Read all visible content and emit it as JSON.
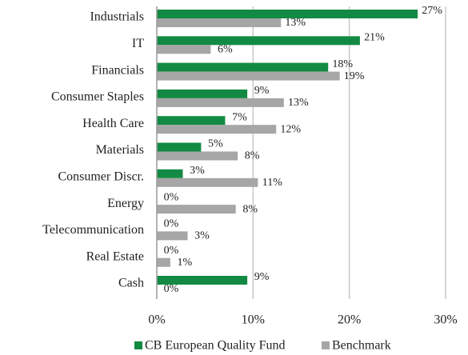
{
  "chart_data": {
    "type": "hbar",
    "categories": [
      "Industrials",
      "IT",
      "Financials",
      "Consumer Staples",
      "Health Care",
      "Materials",
      "Consumer Discr.",
      "Energy",
      "Telecommunication",
      "Real Estate",
      "Cash"
    ],
    "series": [
      {
        "name": "CB European Quality Fund",
        "color": "#138a43",
        "values": [
          27.1,
          21.1,
          17.8,
          9.4,
          7.1,
          4.6,
          2.7,
          0,
          0,
          0,
          9.4
        ],
        "value_labels": [
          "27%",
          "21%",
          "18%",
          "9%",
          "7%",
          "5%",
          "3%",
          "0%",
          "0%",
          "0%",
          "9%"
        ]
      },
      {
        "name": "Benchmark",
        "color": "#a6a6a6",
        "values": [
          12.9,
          5.6,
          19.0,
          13.2,
          12.4,
          8.4,
          10.5,
          8.2,
          3.2,
          1.4,
          0
        ],
        "value_labels": [
          "13%",
          "6%",
          "19%",
          "13%",
          "12%",
          "8%",
          "11%",
          "8%",
          "3%",
          "1%",
          "0%"
        ]
      }
    ],
    "xlim": [
      0,
      30
    ],
    "xticks": [
      {
        "value": 0,
        "label": "0%"
      },
      {
        "value": 10,
        "label": "10%"
      },
      {
        "value": 20,
        "label": "20%"
      },
      {
        "value": 30,
        "label": "30%"
      }
    ],
    "grid": true,
    "legend": "bottom"
  }
}
